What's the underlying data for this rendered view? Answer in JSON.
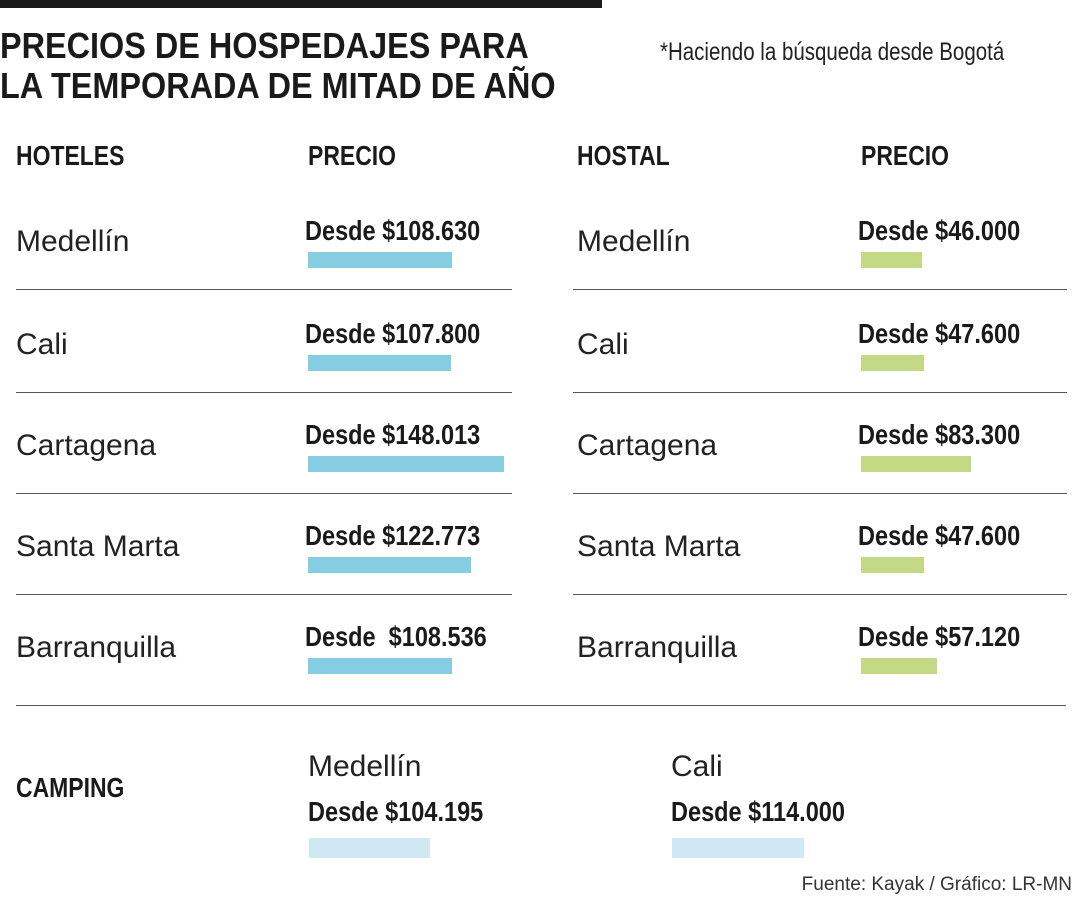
{
  "title_line1": "PRECIOS DE HOSPEDAJES PARA",
  "title_line2": "LA TEMPORADA DE MITAD DE AÑO",
  "note": "*Haciendo la búsqueda desde Bogotá",
  "source": "Fuente: Kayak / Gráfico: LR-MN",
  "colors": {
    "hotel_bar": "#86cde3",
    "hostal_bar": "#c4d985",
    "camping_bar": "#cfe8f3"
  },
  "chart_data": {
    "type": "bar",
    "hoteles": {
      "header": "HOTELES",
      "price_header": "PRECIO",
      "rows": [
        {
          "city": "Medellín",
          "label": "Desde $108.630",
          "value": 108630
        },
        {
          "city": "Cali",
          "label": "Desde $107.800",
          "value": 107800
        },
        {
          "city": "Cartagena",
          "label": "Desde $148.013",
          "value": 148013
        },
        {
          "city": "Santa Marta",
          "label": "Desde $122.773",
          "value": 122773
        },
        {
          "city": "Barranquilla",
          "label": "Desde  $108.536",
          "value": 108536
        }
      ]
    },
    "hostal": {
      "header": "HOSTAL",
      "price_header": "PRECIO",
      "rows": [
        {
          "city": "Medellín",
          "label": "Desde $46.000",
          "value": 46000
        },
        {
          "city": "Cali",
          "label": "Desde $47.600",
          "value": 47600
        },
        {
          "city": "Cartagena",
          "label": "Desde $83.300",
          "value": 83300
        },
        {
          "city": "Santa Marta",
          "label": "Desde $47.600",
          "value": 47600
        },
        {
          "city": "Barranquilla",
          "label": "Desde $57.120",
          "value": 57120
        }
      ]
    },
    "camping": {
      "header": "CAMPING",
      "items": [
        {
          "city": "Medellín",
          "label": "Desde $104.195",
          "value": 104195
        },
        {
          "city": "Cali",
          "label": "Desde $114.000",
          "value": 114000
        }
      ]
    }
  }
}
